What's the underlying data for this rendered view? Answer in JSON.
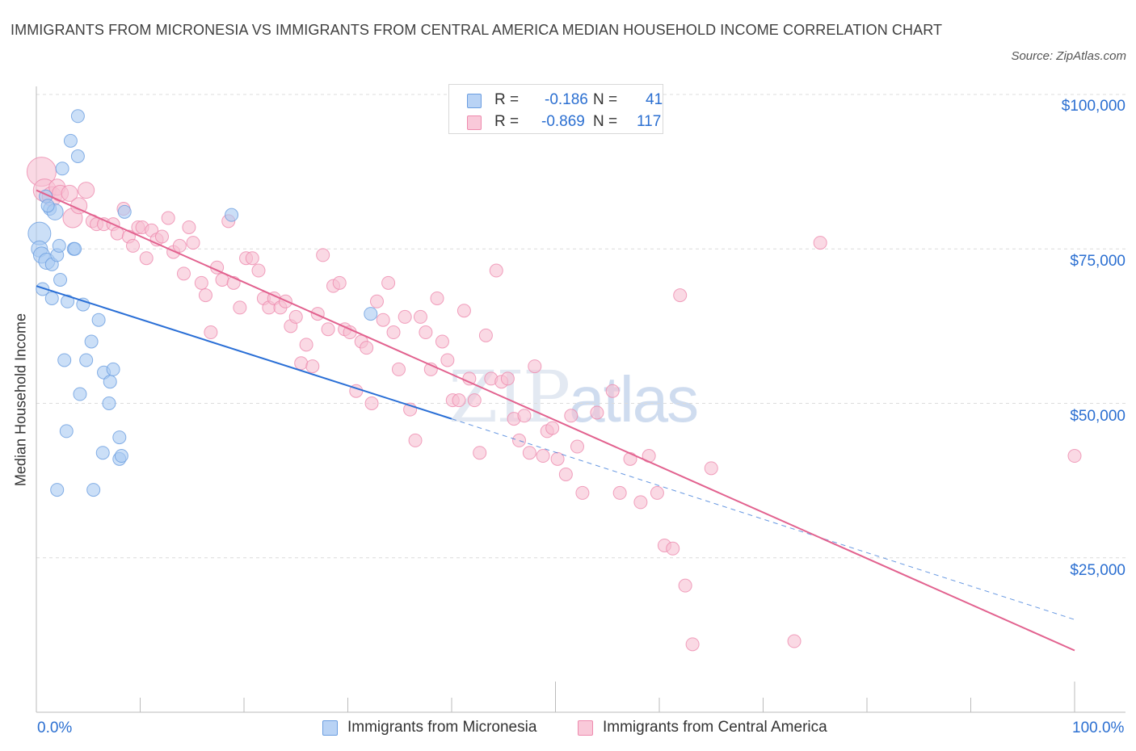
{
  "title": "IMMIGRANTS FROM MICRONESIA VS IMMIGRANTS FROM CENTRAL AMERICA MEDIAN HOUSEHOLD INCOME CORRELATION CHART",
  "source": "Source: ZipAtlas.com",
  "watermark": {
    "zip": "ZIP",
    "atlas": "atlas"
  },
  "legend": {
    "r_label": "R =",
    "n_label": "N =",
    "series": [
      {
        "r": "-0.186",
        "n": "41"
      },
      {
        "r": "-0.869",
        "n": "117"
      }
    ]
  },
  "bottom_legend": [
    "Immigrants from Micronesia",
    "Immigrants from Central America"
  ],
  "colors": {
    "blue_fill": "#a9c9f2",
    "blue_stroke": "#6a9de0",
    "blue_line": "#2a6fd6",
    "pink_fill": "#f7bfd2",
    "pink_stroke": "#ee8aae",
    "pink_line": "#e2628f",
    "tick_text": "#2b6fd1",
    "grid": "#dcdcdc"
  },
  "chart_data": {
    "type": "scatter",
    "xlabel": "",
    "ylabel": "Median Household Income",
    "x_ticks": [
      "0.0%",
      "100.0%"
    ],
    "y_ticks": [
      "$100,000",
      "$75,000",
      "$50,000",
      "$25,000"
    ],
    "xlim": [
      0,
      100
    ],
    "ylim": [
      0,
      105000
    ],
    "series": [
      {
        "name": "Immigrants from Micronesia",
        "trend": {
          "x": [
            0,
            40
          ],
          "y": [
            69000,
            47500
          ],
          "dashed_to": [
            100,
            15000
          ]
        },
        "points": [
          [
            0.3,
            77500,
            14
          ],
          [
            0.3,
            75000,
            10
          ],
          [
            0.5,
            74000,
            10
          ],
          [
            0.6,
            68500,
            8
          ],
          [
            1,
            73000,
            10
          ],
          [
            1.3,
            81500,
            8
          ],
          [
            1.5,
            67000,
            8
          ],
          [
            1.5,
            72500,
            8
          ],
          [
            1.8,
            81000,
            10
          ],
          [
            2,
            74000,
            8
          ],
          [
            2,
            36000,
            8
          ],
          [
            2.2,
            75500,
            8
          ],
          [
            2.3,
            70000,
            8
          ],
          [
            2.5,
            88000,
            8
          ],
          [
            2.7,
            57000,
            8
          ],
          [
            2.9,
            45500,
            8
          ],
          [
            3,
            66500,
            8
          ],
          [
            3.3,
            92500,
            8
          ],
          [
            3.6,
            75000,
            8
          ],
          [
            3.7,
            75000,
            8
          ],
          [
            4,
            96500,
            8
          ],
          [
            4,
            90000,
            8
          ],
          [
            4.2,
            51500,
            8
          ],
          [
            4.5,
            66000,
            8
          ],
          [
            4.8,
            57000,
            8
          ],
          [
            5.3,
            60000,
            8
          ],
          [
            5.5,
            36000,
            8
          ],
          [
            6,
            63500,
            8
          ],
          [
            6.4,
            42000,
            8
          ],
          [
            6.5,
            55000,
            8
          ],
          [
            7,
            50000,
            8
          ],
          [
            7.1,
            53500,
            8
          ],
          [
            7.4,
            55500,
            8
          ],
          [
            8,
            44500,
            8
          ],
          [
            8,
            41000,
            8
          ],
          [
            8.2,
            41500,
            8
          ],
          [
            8.5,
            81000,
            8
          ],
          [
            18.8,
            80500,
            8
          ],
          [
            32.2,
            64500,
            8
          ],
          [
            0.9,
            83500,
            8
          ],
          [
            1.1,
            82000,
            8
          ]
        ]
      },
      {
        "name": "Immigrants from Central America",
        "trend": {
          "x": [
            0,
            100
          ],
          "y": [
            84500,
            10000
          ]
        },
        "points": [
          [
            0.5,
            87500,
            18
          ],
          [
            0.8,
            84500,
            14
          ],
          [
            1.5,
            83500,
            12
          ],
          [
            2,
            85000,
            10
          ],
          [
            2.3,
            84000,
            10
          ],
          [
            3.2,
            84000,
            10
          ],
          [
            3.5,
            80000,
            12
          ],
          [
            4.1,
            82000,
            10
          ],
          [
            4.8,
            84500,
            10
          ],
          [
            5.4,
            79500,
            8
          ],
          [
            5.8,
            79000,
            8
          ],
          [
            6.5,
            79000,
            8
          ],
          [
            7.4,
            79000,
            8
          ],
          [
            7.8,
            77500,
            8
          ],
          [
            8.4,
            81500,
            8
          ],
          [
            8.9,
            77000,
            8
          ],
          [
            9.3,
            75500,
            8
          ],
          [
            9.8,
            78500,
            8
          ],
          [
            10.2,
            78500,
            8
          ],
          [
            10.6,
            73500,
            8
          ],
          [
            11.1,
            78000,
            8
          ],
          [
            11.6,
            76500,
            8
          ],
          [
            12.1,
            77000,
            8
          ],
          [
            12.7,
            80000,
            8
          ],
          [
            13.2,
            74500,
            8
          ],
          [
            13.8,
            75500,
            8
          ],
          [
            14.2,
            71000,
            8
          ],
          [
            14.7,
            78500,
            8
          ],
          [
            15.1,
            76000,
            8
          ],
          [
            15.9,
            69500,
            8
          ],
          [
            16.3,
            67500,
            8
          ],
          [
            16.8,
            61500,
            8
          ],
          [
            17.4,
            72000,
            8
          ],
          [
            17.9,
            70000,
            8
          ],
          [
            18.5,
            79500,
            8
          ],
          [
            19,
            69500,
            8
          ],
          [
            19.6,
            65500,
            8
          ],
          [
            20.2,
            73500,
            8
          ],
          [
            20.8,
            73500,
            8
          ],
          [
            21.4,
            71500,
            8
          ],
          [
            21.9,
            67000,
            8
          ],
          [
            22.4,
            65500,
            8
          ],
          [
            22.9,
            67000,
            8
          ],
          [
            23.5,
            65500,
            8
          ],
          [
            24,
            66500,
            8
          ],
          [
            24.5,
            62500,
            8
          ],
          [
            25,
            64000,
            8
          ],
          [
            25.5,
            56500,
            8
          ],
          [
            26,
            59500,
            8
          ],
          [
            26.6,
            56000,
            8
          ],
          [
            27.1,
            64500,
            8
          ],
          [
            27.6,
            74000,
            8
          ],
          [
            28.1,
            62000,
            8
          ],
          [
            28.6,
            69000,
            8
          ],
          [
            29.2,
            69500,
            8
          ],
          [
            29.7,
            62000,
            8
          ],
          [
            30.2,
            61500,
            8
          ],
          [
            30.8,
            52000,
            8
          ],
          [
            31.3,
            60000,
            8
          ],
          [
            31.8,
            59000,
            8
          ],
          [
            32.3,
            50000,
            8
          ],
          [
            32.8,
            66500,
            8
          ],
          [
            33.4,
            63500,
            8
          ],
          [
            33.9,
            69500,
            8
          ],
          [
            34.4,
            61500,
            8
          ],
          [
            34.9,
            55500,
            8
          ],
          [
            35.5,
            64000,
            8
          ],
          [
            36,
            49000,
            8
          ],
          [
            36.5,
            44000,
            8
          ],
          [
            37,
            64000,
            8
          ],
          [
            37.5,
            61500,
            8
          ],
          [
            38,
            55500,
            8
          ],
          [
            38.6,
            67000,
            8
          ],
          [
            39.1,
            60000,
            8
          ],
          [
            39.6,
            57000,
            8
          ],
          [
            40.1,
            50500,
            8
          ],
          [
            40.7,
            50500,
            8
          ],
          [
            41.2,
            65000,
            8
          ],
          [
            41.7,
            54000,
            8
          ],
          [
            42.2,
            50500,
            8
          ],
          [
            42.7,
            42000,
            8
          ],
          [
            43.3,
            61000,
            8
          ],
          [
            43.8,
            54000,
            8
          ],
          [
            44.3,
            71500,
            8
          ],
          [
            44.8,
            53500,
            8
          ],
          [
            45.4,
            54000,
            8
          ],
          [
            46,
            47500,
            8
          ],
          [
            46.5,
            44000,
            8
          ],
          [
            47,
            48000,
            8
          ],
          [
            47.5,
            42000,
            8
          ],
          [
            48,
            56000,
            8
          ],
          [
            48.8,
            41500,
            8
          ],
          [
            49.2,
            45500,
            8
          ],
          [
            49.7,
            46000,
            8
          ],
          [
            50.2,
            41000,
            8
          ],
          [
            51,
            38500,
            8
          ],
          [
            51.5,
            48000,
            8
          ],
          [
            52.1,
            43000,
            8
          ],
          [
            52.6,
            35500,
            8
          ],
          [
            54,
            48500,
            8
          ],
          [
            55.5,
            52000,
            8
          ],
          [
            56.2,
            35500,
            8
          ],
          [
            57.2,
            41000,
            8
          ],
          [
            58.2,
            34000,
            8
          ],
          [
            59,
            41500,
            8
          ],
          [
            59.8,
            35500,
            8
          ],
          [
            60.5,
            27000,
            8
          ],
          [
            61.3,
            26500,
            8
          ],
          [
            62,
            67500,
            8
          ],
          [
            62.5,
            20500,
            8
          ],
          [
            63.2,
            11000,
            8
          ],
          [
            65,
            39500,
            8
          ],
          [
            73,
            11500,
            8
          ],
          [
            75.5,
            76000,
            8
          ],
          [
            100,
            41500,
            8
          ]
        ]
      }
    ],
    "grid": true,
    "legend_position": "top-center"
  }
}
